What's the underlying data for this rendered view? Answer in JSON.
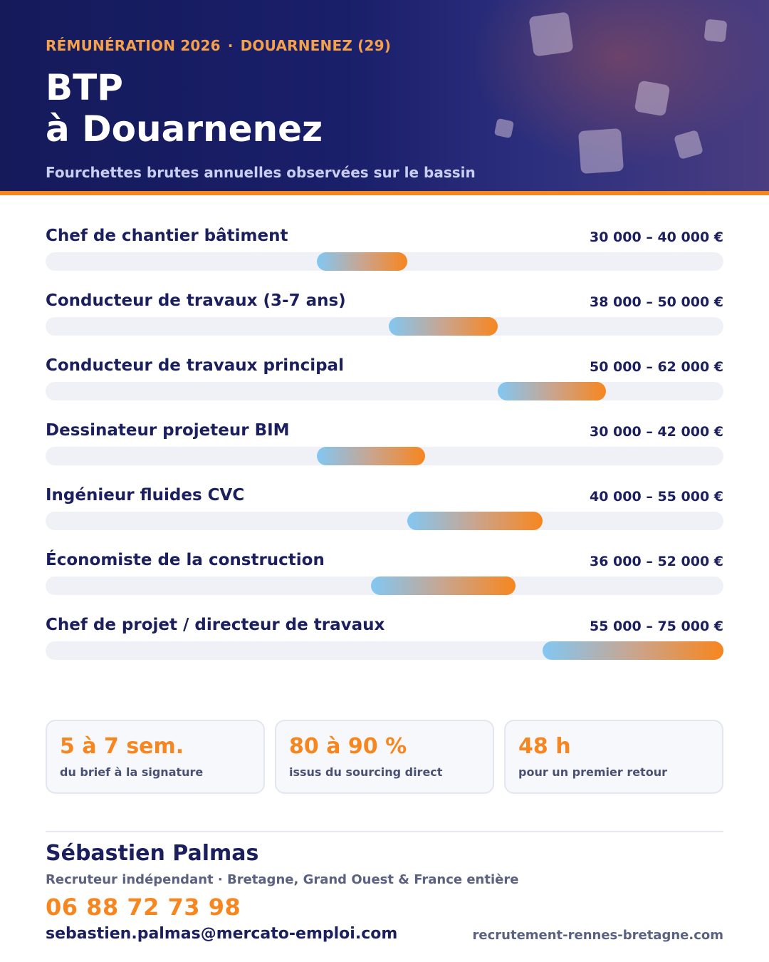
{
  "header": {
    "eyebrow_left": "RÉMUNÉRATION 2026",
    "eyebrow_sep": "·",
    "eyebrow_right": "DOUARNENEZ (29)",
    "title_line1": "BTP",
    "title_line2": "à Douarnenez",
    "subtitle": "Fourchettes brutes annuelles observées sur le bassin"
  },
  "scale": {
    "min": 0,
    "max": 75000,
    "unit": "€"
  },
  "salaries": [
    {
      "label": "Chef de chantier bâtiment",
      "range": "30 000 – 40 000 €",
      "min": 30000,
      "max": 40000
    },
    {
      "label": "Conducteur de travaux (3-7 ans)",
      "range": "38 000 – 50 000 €",
      "min": 38000,
      "max": 50000
    },
    {
      "label": "Conducteur de travaux principal",
      "range": "50 000 – 62 000 €",
      "min": 50000,
      "max": 62000
    },
    {
      "label": "Dessinateur projeteur BIM",
      "range": "30 000 – 42 000 €",
      "min": 30000,
      "max": 42000
    },
    {
      "label": "Ingénieur fluides CVC",
      "range": "40 000 – 55 000 €",
      "min": 40000,
      "max": 55000
    },
    {
      "label": "Économiste de la construction",
      "range": "36 000 – 52 000 €",
      "min": 36000,
      "max": 52000
    },
    {
      "label": "Chef de projet / directeur de travaux",
      "range": "55 000 – 75 000 €",
      "min": 55000,
      "max": 75000
    }
  ],
  "stats": [
    {
      "value": "5 à 7 sem.",
      "label": "du brief à la signature"
    },
    {
      "value": "80 à 90 %",
      "label": "issus du sourcing direct"
    },
    {
      "value": "48 h",
      "label": "pour un premier retour"
    }
  ],
  "contact": {
    "name": "Sébastien Palmas",
    "role": "Recruteur indépendant · Bretagne, Grand Ouest & France entière",
    "phone": "06 88 72 73 98",
    "email": "sebastien.palmas@mercato-emploi.com",
    "website": "recrutement-rennes-bretagne.com"
  },
  "colors": {
    "navy": "#1b1f5e",
    "accent_orange": "#f7861f",
    "gradient_start": "#82c7f3"
  }
}
